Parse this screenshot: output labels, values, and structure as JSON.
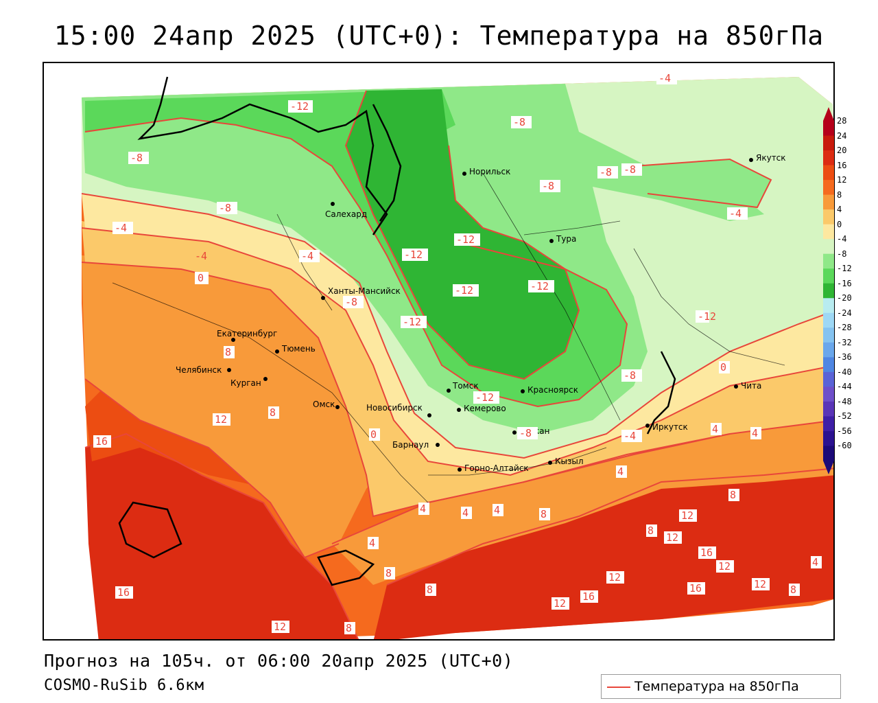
{
  "title": "15:00 24апр 2025 (UTC+0): Температура на 850гПа",
  "forecast_line": "Прогноз на 105ч. от 06:00 20апр 2025 (UTC+0)",
  "model_line": "COSMO-RuSib 6.6км",
  "legend": {
    "label": "Температура на 850гПа",
    "line_color": "#e8463a"
  },
  "color_scale": {
    "labels": [
      "28",
      "24",
      "20",
      "16",
      "12",
      "8",
      "4",
      "0",
      "-4",
      "-8",
      "-12",
      "-16",
      "-20",
      "-24",
      "-28",
      "-32",
      "-36",
      "-40",
      "-44",
      "-48",
      "-52",
      "-56",
      "-60"
    ],
    "colors": [
      "#b5001a",
      "#c81a0c",
      "#dc2c12",
      "#ec4d12",
      "#f56a1e",
      "#f89a3a",
      "#fbc96a",
      "#fde8a0",
      "#d6f5c2",
      "#8fe888",
      "#5bd85a",
      "#2fb534",
      "#b8ecf0",
      "#9ed8f5",
      "#85c3f0",
      "#6aa7eb",
      "#4f86e2",
      "#5a63d6",
      "#6e4fc9",
      "#5a35b7",
      "#3f1fa6",
      "#2b1290",
      "#1c0a78"
    ]
  },
  "cities": [
    {
      "name": "Норильск"
    },
    {
      "name": "Якутск"
    },
    {
      "name": "Салехард"
    },
    {
      "name": "Тура"
    },
    {
      "name": "Ханты-Мансийск"
    },
    {
      "name": "Екатеринбург"
    },
    {
      "name": "Тюмень"
    },
    {
      "name": "Челябинск"
    },
    {
      "name": "Курган"
    },
    {
      "name": "Омск"
    },
    {
      "name": "Новосибирск"
    },
    {
      "name": "Томск"
    },
    {
      "name": "Кемерово"
    },
    {
      "name": "Красноярск"
    },
    {
      "name": "Барнаул"
    },
    {
      "name": "Абакан"
    },
    {
      "name": "Кызыл"
    },
    {
      "name": "Горно-Алтайск"
    },
    {
      "name": "Иркутск"
    },
    {
      "name": "Чита"
    }
  ],
  "isotherm_labels": [
    "-12",
    "-4",
    "-8",
    "-8",
    "-8",
    "-8",
    "-8",
    "-8",
    "-4",
    "-4",
    "-4",
    "0",
    "-8",
    "-12",
    "-12",
    "-12",
    "-12",
    "-12",
    "-12",
    "-8",
    "-12",
    "8",
    "12",
    "8",
    "16",
    "16",
    "12",
    "8",
    "0",
    "4",
    "4",
    "4",
    "4",
    "8",
    "8",
    "12",
    "12",
    "16",
    "12",
    "16",
    "12",
    "16",
    "12",
    "8",
    "4",
    "8",
    "12",
    "8",
    "0",
    "4",
    "4",
    "-4",
    "-8",
    "4",
    "8",
    "-4"
  ]
}
